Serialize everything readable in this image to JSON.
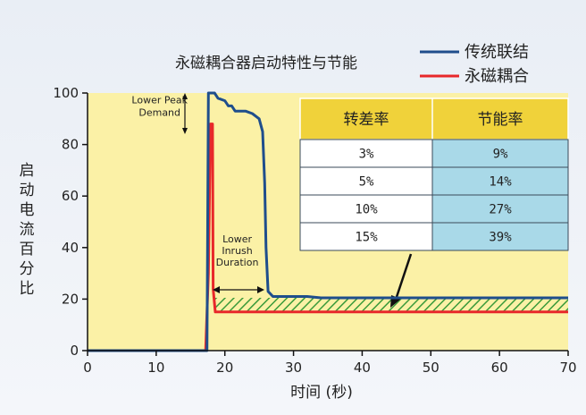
{
  "chart_data": {
    "type": "line",
    "title": "永磁耦合器启动特性与节能",
    "xlabel": "时间 (秒)",
    "ylabel": "启动电流百分比",
    "xlim": [
      0,
      70
    ],
    "ylim": [
      0,
      100
    ],
    "xticks": [
      0,
      10,
      20,
      30,
      40,
      50,
      60,
      70
    ],
    "yticks": [
      0,
      20,
      40,
      60,
      80,
      100
    ],
    "grid": false,
    "legend_position": "top-right",
    "series": [
      {
        "name": "传统联结",
        "color": "#1f4e8c",
        "points": [
          [
            0,
            0
          ],
          [
            17.4,
            0
          ],
          [
            17.6,
            100
          ],
          [
            18.5,
            100
          ],
          [
            19,
            98
          ],
          [
            20,
            97
          ],
          [
            20.5,
            95
          ],
          [
            21,
            95
          ],
          [
            21.5,
            93
          ],
          [
            23,
            93
          ],
          [
            24,
            92
          ],
          [
            25,
            90
          ],
          [
            25.5,
            85
          ],
          [
            25.8,
            65
          ],
          [
            26,
            40
          ],
          [
            26.3,
            23
          ],
          [
            27,
            21
          ],
          [
            28,
            21
          ],
          [
            30,
            21
          ],
          [
            32,
            21
          ],
          [
            34,
            20.5
          ],
          [
            40,
            20.5
          ],
          [
            50,
            20.5
          ],
          [
            60,
            20.5
          ],
          [
            70,
            20.5
          ]
        ]
      },
      {
        "name": "永磁耦合",
        "color": "#e8282a",
        "points": [
          [
            0,
            0
          ],
          [
            17.2,
            0
          ],
          [
            17.6,
            30
          ],
          [
            17.9,
            88
          ],
          [
            18.2,
            88
          ],
          [
            18.3,
            24
          ],
          [
            18.6,
            15
          ],
          [
            25,
            15
          ],
          [
            40,
            15
          ],
          [
            55,
            15
          ],
          [
            70,
            15
          ]
        ]
      }
    ],
    "savings_band": {
      "x_start": 18.5,
      "x_end": 70,
      "y_low": 15,
      "y_high": 20.5,
      "color": "#3a9a3a"
    },
    "annotations": [
      {
        "text_lines": [
          "Lower Peak",
          "Demand"
        ],
        "x": 10.5,
        "y": 96
      },
      {
        "text_lines": [
          "Lower",
          "Inrush",
          "Duration"
        ],
        "x": 21.8,
        "y": 42
      }
    ],
    "table": {
      "headers": [
        "转差率",
        "节能率"
      ],
      "rows": [
        [
          "3%",
          "9%"
        ],
        [
          "5%",
          "14%"
        ],
        [
          "10%",
          "27%"
        ],
        [
          "15%",
          "39%"
        ]
      ],
      "header_color": "#f0d23a",
      "right_col_color": "#a9d9e8"
    },
    "plot_background": "#fbf1a6"
  }
}
